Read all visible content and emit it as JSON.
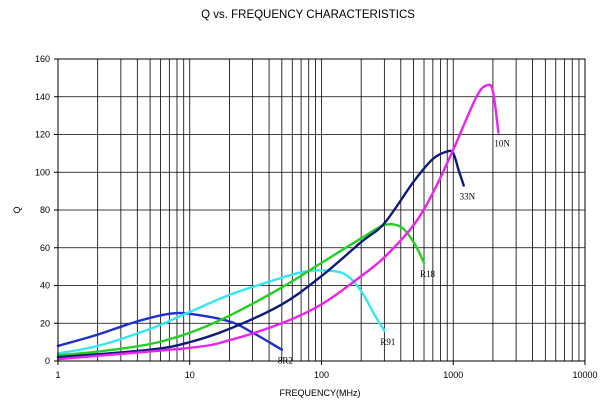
{
  "chart_data": {
    "type": "line",
    "title": "Q vs. FREQUENCY CHARACTERISTICS",
    "xlabel": "FREQUENCY(MHz)",
    "ylabel": "Q",
    "x_scale": "log",
    "xlim": [
      1,
      10000
    ],
    "ylim": [
      0,
      160
    ],
    "x_ticks": [
      1,
      10,
      100,
      1000,
      10000
    ],
    "x_tick_labels": [
      "1",
      "10",
      "100",
      "1000",
      "10000"
    ],
    "y_ticks": [
      0,
      20,
      40,
      60,
      80,
      100,
      120,
      140,
      160
    ],
    "y_tick_labels": [
      "0",
      "20",
      "40",
      "60",
      "80",
      "100",
      "120",
      "140",
      "160"
    ],
    "grid": true,
    "legend": "labels next to curve ends",
    "series": [
      {
        "name": "8R2",
        "color": "#1f2fd0",
        "points": [
          [
            1,
            8
          ],
          [
            2,
            14
          ],
          [
            4,
            21
          ],
          [
            7,
            25
          ],
          [
            10,
            25
          ],
          [
            20,
            21
          ],
          [
            30,
            15
          ],
          [
            40,
            10
          ],
          [
            50,
            6
          ]
        ]
      },
      {
        "name": "R91",
        "color": "#33e6f0",
        "points": [
          [
            1,
            4
          ],
          [
            2,
            8
          ],
          [
            5,
            17
          ],
          [
            10,
            26
          ],
          [
            20,
            35
          ],
          [
            40,
            42
          ],
          [
            70,
            47
          ],
          [
            100,
            48
          ],
          [
            150,
            46
          ],
          [
            200,
            37
          ],
          [
            250,
            25
          ],
          [
            300,
            16
          ]
        ]
      },
      {
        "name": "R18",
        "color": "#22d022",
        "points": [
          [
            1,
            3
          ],
          [
            2,
            5
          ],
          [
            5,
            9
          ],
          [
            10,
            15
          ],
          [
            20,
            24
          ],
          [
            50,
            39
          ],
          [
            100,
            52
          ],
          [
            200,
            65
          ],
          [
            300,
            72
          ],
          [
            400,
            71
          ],
          [
            500,
            63
          ],
          [
            600,
            52
          ]
        ]
      },
      {
        "name": "33N",
        "color": "#0d1a7a",
        "points": [
          [
            1,
            2
          ],
          [
            5,
            6
          ],
          [
            10,
            10
          ],
          [
            20,
            17
          ],
          [
            50,
            30
          ],
          [
            100,
            45
          ],
          [
            200,
            63
          ],
          [
            300,
            73
          ],
          [
            500,
            95
          ],
          [
            700,
            107
          ],
          [
            900,
            111
          ],
          [
            1000,
            110
          ],
          [
            1100,
            101
          ],
          [
            1200,
            93
          ]
        ]
      },
      {
        "name": "10N",
        "color": "#ee22ee",
        "points": [
          [
            1,
            1
          ],
          [
            10,
            7
          ],
          [
            20,
            11
          ],
          [
            50,
            20
          ],
          [
            100,
            30
          ],
          [
            200,
            45
          ],
          [
            300,
            55
          ],
          [
            500,
            72
          ],
          [
            700,
            89
          ],
          [
            1000,
            112
          ],
          [
            1500,
            140
          ],
          [
            1800,
            146
          ],
          [
            2000,
            143
          ],
          [
            2200,
            121
          ]
        ]
      }
    ]
  }
}
